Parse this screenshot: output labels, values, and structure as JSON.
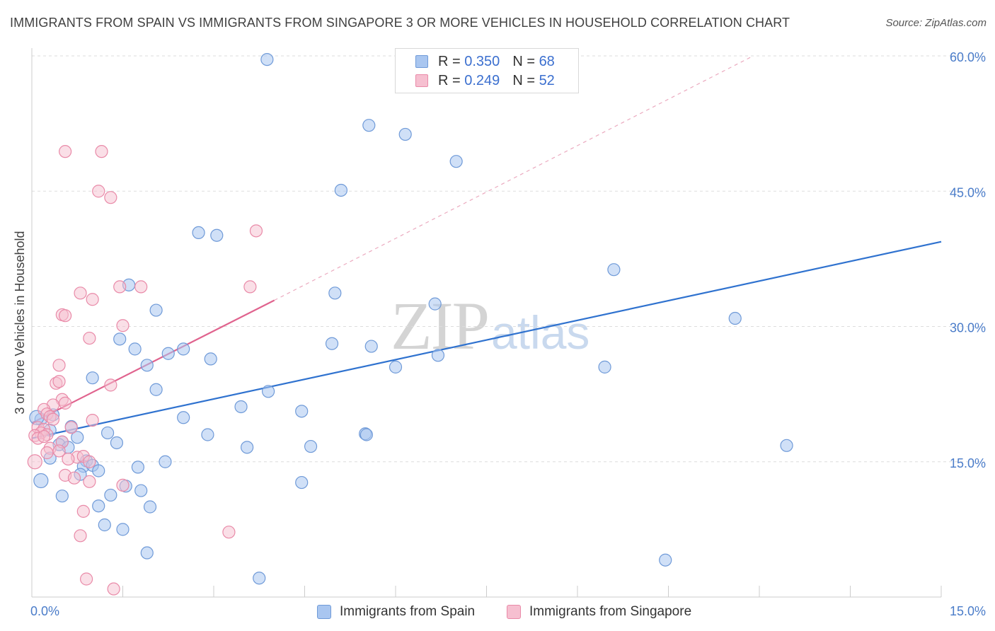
{
  "title": "IMMIGRANTS FROM SPAIN VS IMMIGRANTS FROM SINGAPORE 3 OR MORE VEHICLES IN HOUSEHOLD CORRELATION CHART",
  "source": "Source: ZipAtlas.com",
  "watermark": {
    "zip": "ZIP",
    "atlas": "atlas"
  },
  "legend": {
    "spain": {
      "r_label": "R =",
      "r_value": "0.350",
      "n_label": "N =",
      "n_value": "68"
    },
    "singapore": {
      "r_label": "R =",
      "r_value": "0.249",
      "n_label": "N =",
      "n_value": "52"
    }
  },
  "bottom_legend": {
    "spain": "Immigrants from Spain",
    "singapore": "Immigrants from Singapore"
  },
  "colors": {
    "spain_fill": "#a9c6f0",
    "spain_stroke": "#6f9ad8",
    "spain_line": "#2f72cf",
    "singapore_fill": "#f6bfd0",
    "singapore_stroke": "#e98aa8",
    "singapore_line": "#e0638e",
    "tick_text": "#4a7cc9",
    "grid": "#dddddd"
  },
  "chart_data": {
    "type": "scatter",
    "title": "IMMIGRANTS FROM SPAIN VS IMMIGRANTS FROM SINGAPORE 3 OR MORE VEHICLES IN HOUSEHOLD CORRELATION CHART",
    "xlabel": "",
    "ylabel": "3 or more Vehicles in Household",
    "xlim": [
      0,
      15
    ],
    "ylim": [
      0,
      60
    ],
    "x_tick_labels": [
      "0.0%",
      "15.0%"
    ],
    "y_ticks": [
      15,
      30,
      45,
      60
    ],
    "y_tick_labels": [
      "15.0%",
      "30.0%",
      "45.0%",
      "60.0%"
    ],
    "grid": true,
    "legend_position": "top-center",
    "series": [
      {
        "name": "Immigrants from Spain",
        "r": 0.35,
        "n": 68,
        "trend": {
          "x": [
            0.0,
            15.0
          ],
          "y": [
            17.6,
            39.4
          ]
        },
        "points": [
          [
            3.88,
            59.6
          ],
          [
            5.56,
            52.3
          ],
          [
            6.16,
            51.3
          ],
          [
            7.0,
            48.3
          ],
          [
            5.1,
            45.1
          ],
          [
            2.75,
            40.4
          ],
          [
            3.05,
            40.1
          ],
          [
            9.6,
            36.3
          ],
          [
            1.6,
            34.6
          ],
          [
            5.0,
            33.7
          ],
          [
            6.65,
            32.5
          ],
          [
            2.05,
            31.8
          ],
          [
            11.6,
            30.9
          ],
          [
            1.45,
            28.6
          ],
          [
            1.7,
            27.5
          ],
          [
            4.95,
            28.1
          ],
          [
            5.6,
            27.8
          ],
          [
            2.25,
            27.0
          ],
          [
            2.5,
            27.5
          ],
          [
            2.95,
            26.4
          ],
          [
            1.9,
            25.7
          ],
          [
            6.0,
            25.5
          ],
          [
            6.7,
            26.8
          ],
          [
            9.45,
            25.5
          ],
          [
            1.0,
            24.3
          ],
          [
            2.05,
            23.0
          ],
          [
            3.9,
            22.8
          ],
          [
            3.45,
            21.1
          ],
          [
            4.45,
            20.6
          ],
          [
            2.5,
            19.9
          ],
          [
            0.35,
            20.2
          ],
          [
            0.65,
            18.9
          ],
          [
            0.15,
            19.7
          ],
          [
            0.3,
            18.5
          ],
          [
            1.25,
            18.2
          ],
          [
            2.9,
            18.0
          ],
          [
            5.5,
            18.1
          ],
          [
            5.52,
            18.0
          ],
          [
            0.75,
            17.7
          ],
          [
            0.5,
            17.2
          ],
          [
            0.45,
            16.9
          ],
          [
            1.4,
            17.1
          ],
          [
            3.55,
            16.6
          ],
          [
            4.6,
            16.7
          ],
          [
            12.45,
            16.8
          ],
          [
            0.6,
            16.6
          ],
          [
            0.3,
            15.4
          ],
          [
            0.9,
            15.1
          ],
          [
            2.2,
            15.0
          ],
          [
            0.85,
            14.5
          ],
          [
            1.0,
            14.6
          ],
          [
            1.1,
            14.0
          ],
          [
            0.8,
            13.6
          ],
          [
            1.75,
            14.4
          ],
          [
            0.15,
            12.9
          ],
          [
            4.45,
            12.7
          ],
          [
            1.55,
            12.3
          ],
          [
            1.8,
            11.8
          ],
          [
            0.5,
            11.2
          ],
          [
            1.3,
            11.3
          ],
          [
            1.1,
            10.1
          ],
          [
            1.95,
            10.0
          ],
          [
            1.2,
            8.0
          ],
          [
            1.5,
            7.5
          ],
          [
            1.9,
            4.9
          ],
          [
            10.45,
            4.1
          ],
          [
            3.75,
            2.1
          ],
          [
            0.08,
            19.9
          ]
        ]
      },
      {
        "name": "Immigrants from Singapore",
        "r": 0.249,
        "n": 52,
        "trend": {
          "x": [
            0.0,
            4.0
          ],
          "y": [
            19.3,
            32.9
          ],
          "extended": {
            "x": [
              4.0,
              11.9
            ],
            "y": [
              32.9,
              60.0
            ]
          }
        },
        "points": [
          [
            0.55,
            49.4
          ],
          [
            1.15,
            49.4
          ],
          [
            1.1,
            45.0
          ],
          [
            1.3,
            44.3
          ],
          [
            3.7,
            40.6
          ],
          [
            1.45,
            34.4
          ],
          [
            1.8,
            34.4
          ],
          [
            3.6,
            34.4
          ],
          [
            0.8,
            33.7
          ],
          [
            1.0,
            33.0
          ],
          [
            0.5,
            31.3
          ],
          [
            0.55,
            31.2
          ],
          [
            1.5,
            30.1
          ],
          [
            0.95,
            28.7
          ],
          [
            0.45,
            25.7
          ],
          [
            0.4,
            23.7
          ],
          [
            0.45,
            23.9
          ],
          [
            1.3,
            23.5
          ],
          [
            0.5,
            21.9
          ],
          [
            0.55,
            21.5
          ],
          [
            0.35,
            21.3
          ],
          [
            0.2,
            20.8
          ],
          [
            0.25,
            20.3
          ],
          [
            0.3,
            20.0
          ],
          [
            0.35,
            19.7
          ],
          [
            1.0,
            19.6
          ],
          [
            0.1,
            18.8
          ],
          [
            0.2,
            18.6
          ],
          [
            0.15,
            18.2
          ],
          [
            0.25,
            18.0
          ],
          [
            0.05,
            17.9
          ],
          [
            0.1,
            17.6
          ],
          [
            0.2,
            17.8
          ],
          [
            0.65,
            18.8
          ],
          [
            0.5,
            17.2
          ],
          [
            0.3,
            16.5
          ],
          [
            0.25,
            16.0
          ],
          [
            0.45,
            16.2
          ],
          [
            0.75,
            15.5
          ],
          [
            0.85,
            15.6
          ],
          [
            0.95,
            15.0
          ],
          [
            0.6,
            15.3
          ],
          [
            0.05,
            15.0
          ],
          [
            0.55,
            13.5
          ],
          [
            0.7,
            13.2
          ],
          [
            0.95,
            12.8
          ],
          [
            1.5,
            12.4
          ],
          [
            0.85,
            9.5
          ],
          [
            3.25,
            7.2
          ],
          [
            0.8,
            6.8
          ],
          [
            0.9,
            2.0
          ],
          [
            1.35,
            0.9
          ]
        ]
      }
    ]
  }
}
